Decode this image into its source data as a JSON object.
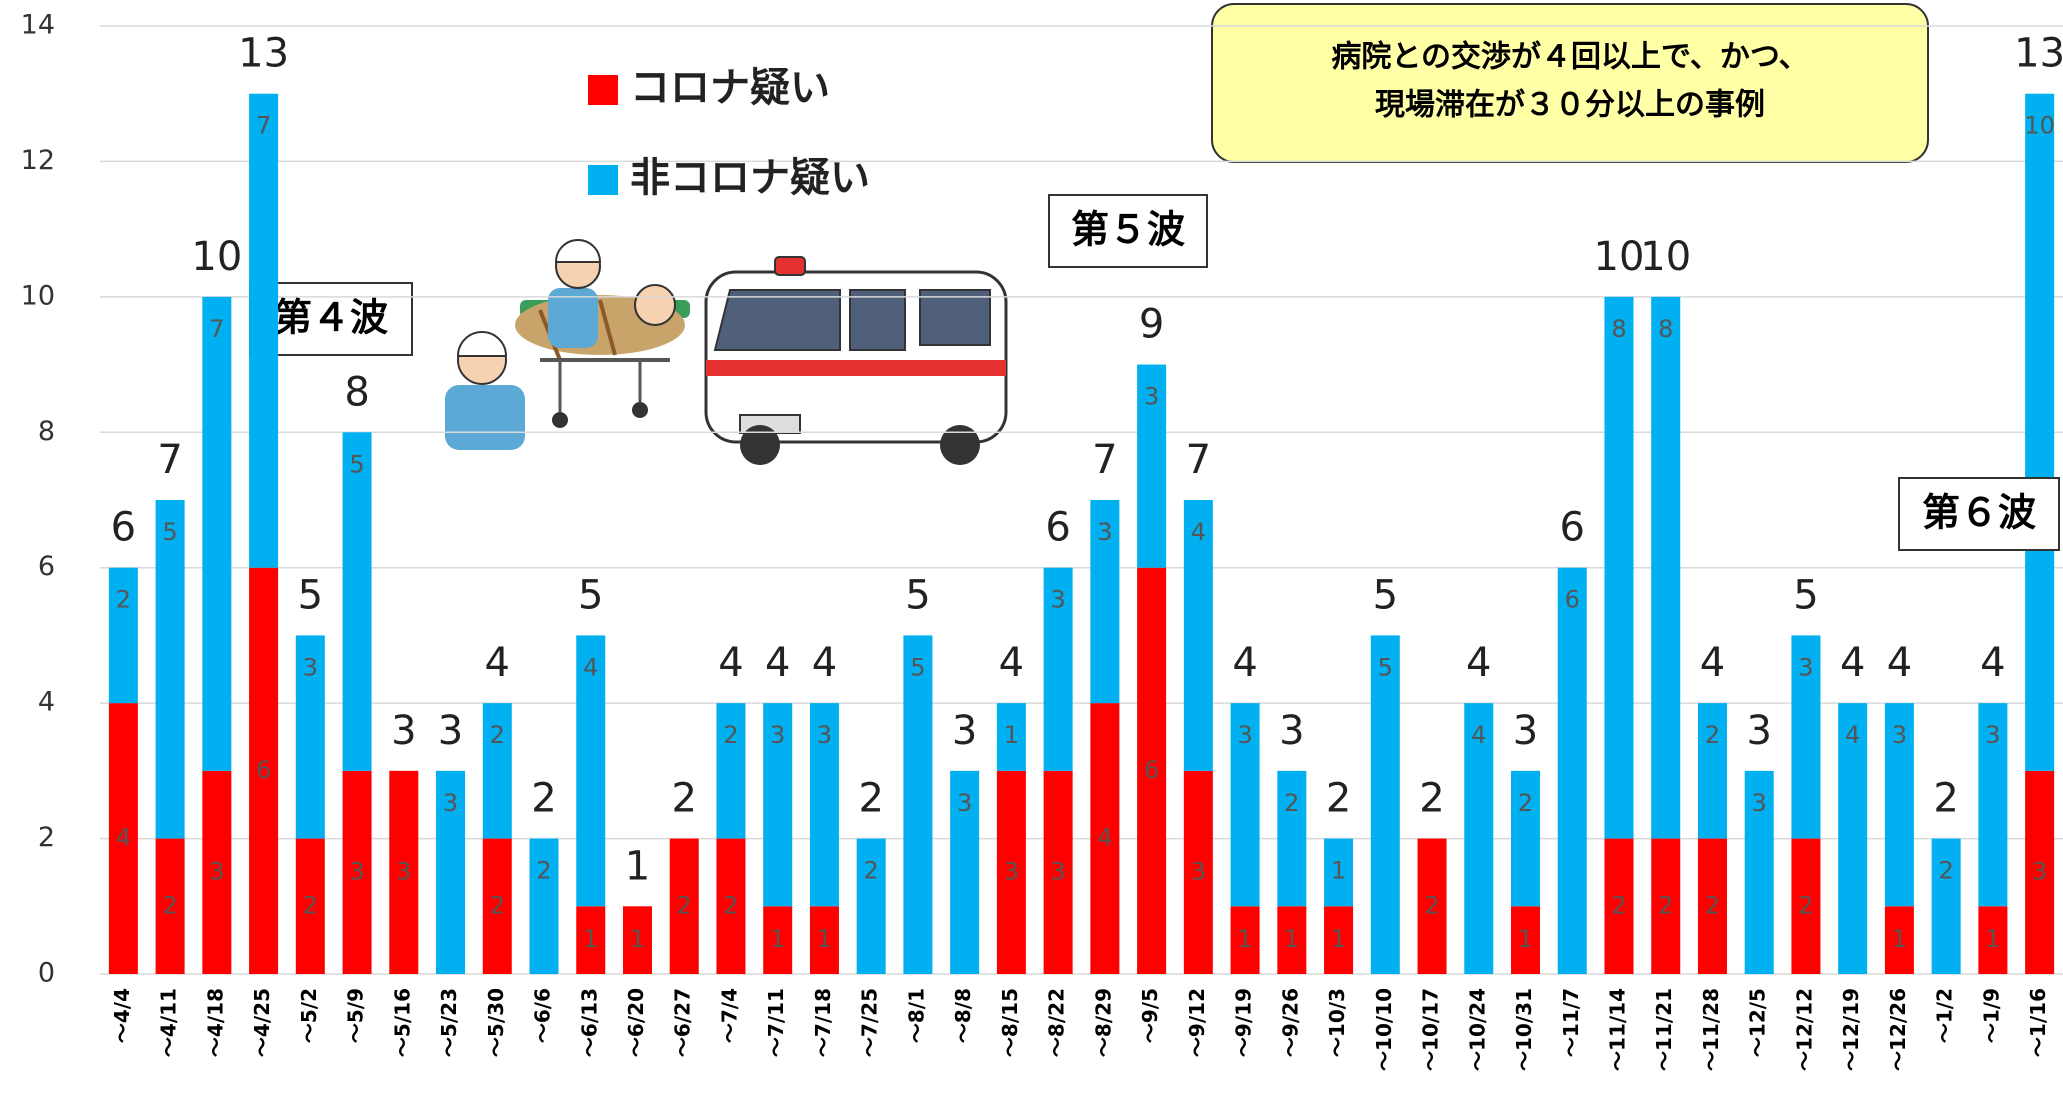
{
  "chart_data": {
    "type": "stacked-bar",
    "categories": [
      "～4/4",
      "～4/11",
      "～4/18",
      "～4/25",
      "～5/2",
      "～5/9",
      "～5/16",
      "～5/23",
      "～5/30",
      "～6/6",
      "～6/13",
      "～6/20",
      "～6/27",
      "～7/4",
      "～7/11",
      "～7/18",
      "～7/25",
      "～8/1",
      "～8/8",
      "～8/15",
      "～8/22",
      "～8/29",
      "～9/5",
      "～9/12",
      "～9/19",
      "～9/26",
      "～10/3",
      "～10/10",
      "～10/17",
      "～10/24",
      "～10/31",
      "～11/7",
      "～11/14",
      "～11/21",
      "～11/28",
      "～12/5",
      "～12/12",
      "～12/19",
      "～12/26",
      "～1/2",
      "～1/9",
      "～1/16"
    ],
    "series": [
      {
        "name": "コロナ疑い",
        "color": "#ff0000",
        "values": [
          4,
          2,
          3,
          6,
          2,
          3,
          3,
          null,
          2,
          null,
          1,
          1,
          2,
          2,
          1,
          1,
          null,
          null,
          null,
          3,
          3,
          4,
          6,
          3,
          1,
          1,
          1,
          null,
          2,
          null,
          1,
          null,
          2,
          2,
          2,
          null,
          2,
          null,
          1,
          null,
          1,
          3
        ]
      },
      {
        "name": "非コロナ疑い",
        "color": "#00b0f0",
        "values": [
          2,
          5,
          7,
          7,
          3,
          5,
          null,
          3,
          2,
          2,
          4,
          null,
          null,
          2,
          3,
          3,
          2,
          5,
          3,
          1,
          3,
          3,
          3,
          4,
          3,
          2,
          1,
          5,
          null,
          4,
          2,
          6,
          8,
          8,
          2,
          3,
          3,
          4,
          3,
          2,
          3,
          10
        ]
      }
    ],
    "totals": [
      6,
      7,
      10,
      13,
      5,
      8,
      3,
      3,
      4,
      2,
      5,
      1,
      2,
      4,
      4,
      4,
      2,
      5,
      3,
      4,
      6,
      7,
      9,
      7,
      4,
      3,
      2,
      5,
      2,
      4,
      3,
      6,
      10,
      10,
      4,
      3,
      5,
      4,
      4,
      2,
      4,
      13
    ],
    "ylim": [
      0,
      14
    ],
    "yticks": [
      0,
      2,
      4,
      6,
      8,
      10,
      12,
      14
    ],
    "grid": true,
    "annotations": [
      "第４波",
      "第５波",
      "第６波"
    ],
    "note": [
      "病院との交渉が４回以上で、かつ、",
      "現場滞在が３０分以上の事例"
    ]
  }
}
